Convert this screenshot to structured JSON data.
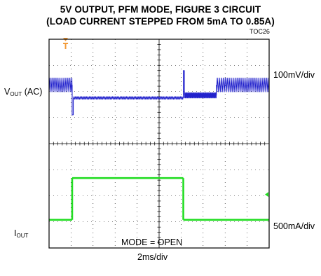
{
  "title_line1": "5V OUTPUT, PFM MODE, FIGURE 3 CIRCUIT",
  "title_line2": "(LOAD CURRENT STEPPED FROM 5mA TO 0.85A)",
  "figure_code": "TOC26",
  "labels": {
    "vout_main": "V",
    "vout_sub": "OUT",
    "vout_suffix": " (AC)",
    "iout_main": "I",
    "iout_sub": "OUT",
    "vout_scale": "100mV/div",
    "iout_scale": "500mA/div",
    "time_scale": "2ms/div",
    "mode": "MODE = OPEN"
  },
  "colors": {
    "vout_trace": "#2222cc",
    "iout_trace": "#22dd22",
    "trigger_marker": "#f39c3a",
    "grid": "#000000"
  },
  "chart_data": {
    "type": "line",
    "grid": {
      "x_divisions": 10,
      "y_divisions": 8,
      "minor_ticks_per_div": 5
    },
    "x": {
      "unit": "ms",
      "per_div": 2,
      "range": [
        0,
        20
      ]
    },
    "series": [
      {
        "name": "VOUT (AC)",
        "scale": "100mV/div",
        "unit": "div",
        "segments": [
          {
            "t": [
              0,
              2.1
            ],
            "level": 6.25,
            "ripple_pp": 0.55,
            "ripple_period_ms": 0.18
          },
          {
            "t": [
              2.1,
              2.2
            ],
            "level": 5.1,
            "ripple_pp": 0,
            "ripple_period_ms": 0
          },
          {
            "t": [
              2.2,
              12.2
            ],
            "level": 5.75,
            "ripple_pp": 0.12,
            "ripple_period_ms": 0.14
          },
          {
            "t": [
              12.2,
              12.3
            ],
            "level": 6.8,
            "ripple_pp": 0,
            "ripple_period_ms": 0
          },
          {
            "t": [
              12.3,
              15.2
            ],
            "level": 5.85,
            "ripple_pp": 0.22,
            "ripple_period_ms": 0.09
          },
          {
            "t": [
              15.2,
              20
            ],
            "level": 6.25,
            "ripple_pp": 0.55,
            "ripple_period_ms": 0.18
          }
        ]
      },
      {
        "name": "IOUT",
        "scale": "500mA/div",
        "unit": "div",
        "segments": [
          {
            "t": [
              0,
              2.1
            ],
            "level": 1.08
          },
          {
            "t": [
              2.1,
              12.2
            ],
            "level": 2.68
          },
          {
            "t": [
              12.2,
              20
            ],
            "level": 1.08
          }
        ]
      }
    ]
  }
}
